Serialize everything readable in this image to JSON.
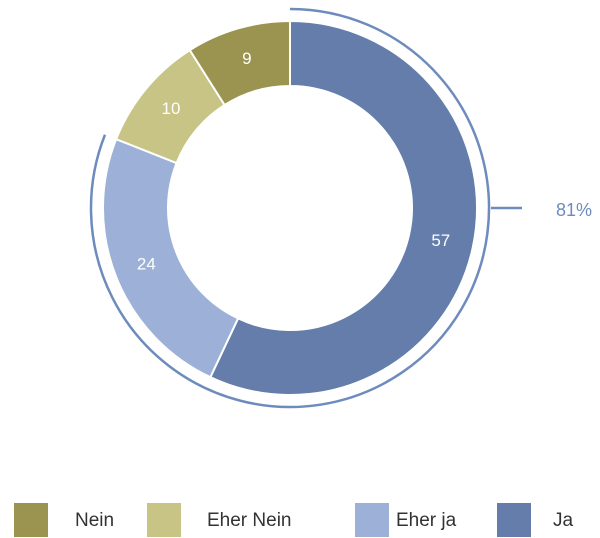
{
  "chart_data": {
    "type": "donut",
    "categories": [
      "Nein",
      "Eher Nein",
      "Eher ja",
      "Ja"
    ],
    "values": [
      9,
      10,
      24,
      57
    ],
    "colors": [
      "#9a9450",
      "#c8c486",
      "#9cb0d8",
      "#647dab"
    ],
    "annotation": {
      "value": 81,
      "label": "81%"
    }
  }
}
